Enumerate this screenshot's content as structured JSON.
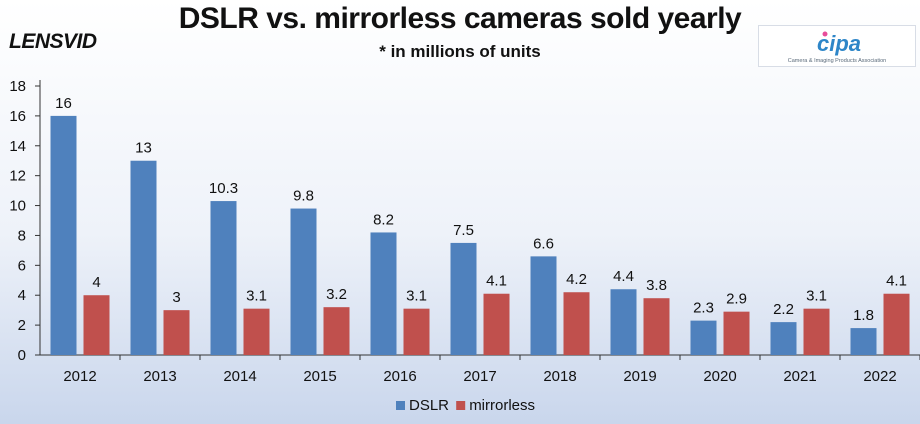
{
  "header": {
    "title": "DSLR vs. mirrorless cameras sold yearly",
    "subtitle": "* in millions of units",
    "brand": "LENSVID",
    "badge_logo_text": "cipa",
    "badge_caption": "Camera & Imaging Products Association"
  },
  "colors": {
    "dslr": "#4f81bd",
    "mirrorless": "#c0504d",
    "axis": "#333333"
  },
  "chart_data": {
    "type": "bar",
    "title": "DSLR vs. mirrorless cameras sold yearly",
    "subtitle": "* in millions of units",
    "xlabel": "",
    "ylabel": "",
    "ylim": [
      0,
      18
    ],
    "yticks": [
      0,
      2,
      4,
      6,
      8,
      10,
      12,
      14,
      16,
      18
    ],
    "grid": false,
    "legend": "bottom",
    "categories": [
      "2012",
      "2013",
      "2014",
      "2015",
      "2016",
      "2017",
      "2018",
      "2019",
      "2020",
      "2021",
      "2022"
    ],
    "series": [
      {
        "name": "DSLR",
        "values": [
          16,
          13,
          10.3,
          9.8,
          8.2,
          7.5,
          6.6,
          4.4,
          2.3,
          2.2,
          1.8
        ]
      },
      {
        "name": "mirrorless",
        "values": [
          4,
          3,
          3.1,
          3.2,
          3.1,
          4.1,
          4.2,
          3.8,
          2.9,
          3.1,
          4.1
        ]
      }
    ]
  }
}
